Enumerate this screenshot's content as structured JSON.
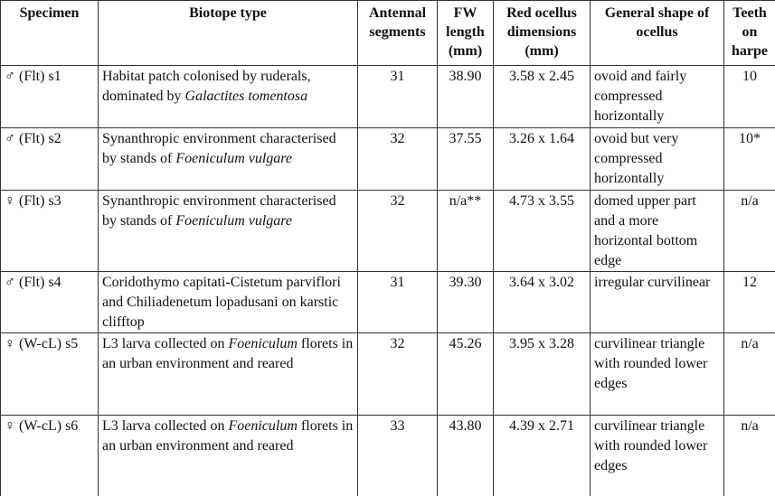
{
  "table": {
    "header": [
      "Specimen",
      "Biotope type",
      "Antennal segments",
      "FW length (mm)",
      "Red ocellus dimensions (mm)",
      "General shape of ocellus",
      "Teeth on harpe"
    ],
    "rows": [
      [
        "♂ (Flt) s1",
        [
          {
            "text": "Habitat patch colonised by ruderals, dominated by ",
            "italic": false
          },
          {
            "text": "Galactites tomentosa",
            "italic": true
          }
        ],
        "31",
        "38.90",
        "3.58 x 2.45",
        "ovoid and fairly compressed horizontally",
        "10"
      ],
      [
        "♂ (Flt) s2",
        [
          {
            "text": "Synanthropic environment characterised by stands of ",
            "italic": false
          },
          {
            "text": "Foeniculum vulgare",
            "italic": true
          }
        ],
        "32",
        "37.55",
        "3.26 x 1.64",
        "ovoid but very compressed horizontally",
        "10*"
      ],
      [
        "♀ (Flt) s3",
        [
          {
            "text": "Synanthropic environment characterised by stands of ",
            "italic": false
          },
          {
            "text": "Foeniculum vulgare",
            "italic": true
          }
        ],
        "32",
        "n/a**",
        "4.73 x 3.55",
        "domed upper part and a more horizontal bottom edge",
        "n/a"
      ],
      [
        "♂ (Flt) s4",
        [
          {
            "text": "Coridothymo capitati-Cistetum parviflori and Chiliadenetum lopadusani on karstic clifftop",
            "italic": false
          }
        ],
        "31",
        "39.30",
        "3.64 x 3.02",
        "irregular curvilinear",
        "12"
      ],
      [
        "♀ (W-cL) s5",
        [
          {
            "text": "L3 larva collected on ",
            "italic": false
          },
          {
            "text": "Foeniculum",
            "italic": true
          },
          {
            "text": " florets in an urban environment and reared",
            "italic": false
          }
        ],
        "32",
        "45.26",
        "3.95 x 3.28",
        "curvilinear triangle with rounded lower edges",
        "n/a"
      ],
      [
        "♀ (W-cL) s6",
        [
          {
            "text": "L3 larva collected on ",
            "italic": false
          },
          {
            "text": "Foeniculum",
            "italic": true
          },
          {
            "text": " florets in an urban environment and reared",
            "italic": false
          }
        ],
        "33",
        "43.80",
        "4.39 x 2.71",
        "curvilinear triangle with rounded lower edges",
        "n/a"
      ]
    ]
  }
}
